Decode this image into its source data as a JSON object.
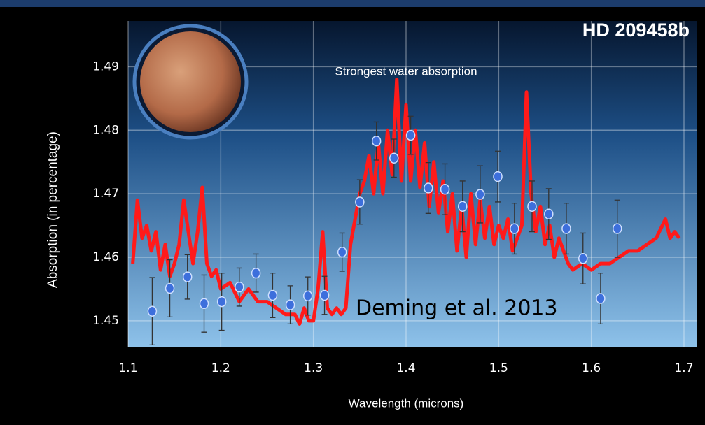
{
  "chart_data": {
    "type": "scatter",
    "title": "HD 209458b",
    "annotation": "Strongest water absorption",
    "caption": "Deming et al. 2013",
    "x_label": "Wavelength (microns)",
    "y_label": "Absorption (in percentage)",
    "xlim": [
      1.1,
      1.7136
    ],
    "ylim": [
      1.4458,
      1.4972
    ],
    "xticks": [
      1.1,
      1.2,
      1.3,
      1.4,
      1.5,
      1.6,
      1.7
    ],
    "yticks": [
      1.45,
      1.46,
      1.47,
      1.48,
      1.49
    ],
    "grid": true,
    "series": [
      {
        "type": "line",
        "color": "#ff1a1a",
        "x": [
          1.105,
          1.11,
          1.115,
          1.12,
          1.125,
          1.13,
          1.135,
          1.14,
          1.145,
          1.15,
          1.155,
          1.16,
          1.165,
          1.17,
          1.175,
          1.18,
          1.185,
          1.19,
          1.195,
          1.2,
          1.21,
          1.22,
          1.23,
          1.24,
          1.25,
          1.26,
          1.27,
          1.28,
          1.285,
          1.29,
          1.295,
          1.3,
          1.305,
          1.31,
          1.315,
          1.32,
          1.325,
          1.33,
          1.335,
          1.34,
          1.345,
          1.35,
          1.355,
          1.36,
          1.365,
          1.37,
          1.375,
          1.38,
          1.385,
          1.39,
          1.395,
          1.4,
          1.405,
          1.41,
          1.415,
          1.42,
          1.425,
          1.43,
          1.435,
          1.44,
          1.445,
          1.45,
          1.455,
          1.46,
          1.465,
          1.47,
          1.475,
          1.48,
          1.485,
          1.49,
          1.495,
          1.5,
          1.505,
          1.51,
          1.515,
          1.52,
          1.525,
          1.53,
          1.535,
          1.54,
          1.545,
          1.55,
          1.555,
          1.56,
          1.565,
          1.57,
          1.575,
          1.58,
          1.59,
          1.6,
          1.61,
          1.62,
          1.63,
          1.64,
          1.65,
          1.66,
          1.67,
          1.68,
          1.685,
          1.69,
          1.695
        ],
        "values": [
          1.459,
          1.469,
          1.463,
          1.465,
          1.461,
          1.464,
          1.458,
          1.462,
          1.457,
          1.459,
          1.462,
          1.469,
          1.464,
          1.459,
          1.464,
          1.471,
          1.459,
          1.457,
          1.458,
          1.455,
          1.456,
          1.453,
          1.455,
          1.453,
          1.453,
          1.452,
          1.451,
          1.451,
          1.4495,
          1.452,
          1.45,
          1.45,
          1.455,
          1.464,
          1.452,
          1.451,
          1.452,
          1.451,
          1.452,
          1.462,
          1.466,
          1.47,
          1.472,
          1.476,
          1.47,
          1.478,
          1.47,
          1.48,
          1.473,
          1.488,
          1.472,
          1.484,
          1.472,
          1.48,
          1.471,
          1.478,
          1.468,
          1.475,
          1.467,
          1.472,
          1.464,
          1.47,
          1.461,
          1.468,
          1.46,
          1.47,
          1.462,
          1.469,
          1.463,
          1.468,
          1.462,
          1.465,
          1.463,
          1.466,
          1.461,
          1.463,
          1.465,
          1.486,
          1.47,
          1.464,
          1.468,
          1.462,
          1.465,
          1.46,
          1.463,
          1.461,
          1.459,
          1.458,
          1.459,
          1.458,
          1.459,
          1.459,
          1.46,
          1.461,
          1.461,
          1.462,
          1.463,
          1.466,
          1.463,
          1.464,
          1.463
        ]
      },
      {
        "type": "scatter",
        "color": "#3d6fdc",
        "x": [
          1.126,
          1.145,
          1.164,
          1.182,
          1.201,
          1.22,
          1.238,
          1.256,
          1.275,
          1.294,
          1.312,
          1.331,
          1.35,
          1.368,
          1.387,
          1.405,
          1.424,
          1.442,
          1.461,
          1.48,
          1.499,
          1.517,
          1.536,
          1.554,
          1.573,
          1.591,
          1.61,
          1.628
        ],
        "values": [
          1.4515,
          1.4551,
          1.4569,
          1.4527,
          1.453,
          1.4553,
          1.4575,
          1.454,
          1.4525,
          1.4539,
          1.454,
          1.4608,
          1.4687,
          1.4783,
          1.4756,
          1.4792,
          1.4709,
          1.4707,
          1.468,
          1.4699,
          1.4727,
          1.4645,
          1.468,
          1.4668,
          1.4645,
          1.4598,
          1.4535,
          1.4645
        ],
        "errors": [
          0.0053,
          0.0045,
          0.0035,
          0.0045,
          0.0045,
          0.003,
          0.003,
          0.0035,
          0.003,
          0.003,
          0.003,
          0.003,
          0.0035,
          0.003,
          0.003,
          0.003,
          0.004,
          0.004,
          0.004,
          0.0045,
          0.004,
          0.004,
          0.004,
          0.004,
          0.004,
          0.004,
          0.004,
          0.0045
        ]
      }
    ]
  }
}
